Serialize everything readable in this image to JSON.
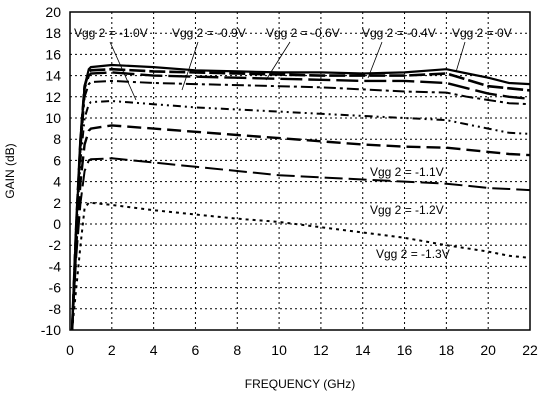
{
  "chart_data": {
    "type": "line",
    "xlabel": "FREQUENCY (GHz)",
    "ylabel": "GAIN (dB)",
    "xlim": [
      0,
      22
    ],
    "ylim": [
      -10,
      20
    ],
    "xticks": [
      0,
      2,
      4,
      6,
      8,
      10,
      12,
      14,
      16,
      18,
      20,
      22
    ],
    "yticks": [
      -10,
      -8,
      -6,
      -4,
      -2,
      0,
      2,
      4,
      6,
      8,
      10,
      12,
      14,
      16,
      18,
      20
    ],
    "grid": true,
    "series": [
      {
        "name": "Vgg 2 = 0V",
        "x": [
          0.1,
          0.3,
          0.5,
          0.7,
          0.9,
          1,
          2,
          4,
          6,
          8,
          10,
          12,
          14,
          16,
          18,
          19,
          20,
          21,
          22
        ],
        "y": [
          -10,
          0,
          8,
          13,
          14.6,
          14.8,
          15.0,
          14.8,
          14.5,
          14.4,
          14.3,
          14.3,
          14.2,
          14.3,
          14.6,
          14.2,
          13.8,
          13.3,
          13.2
        ]
      },
      {
        "name": "Vgg 2 = -0.4V",
        "x": [
          0.1,
          0.3,
          0.5,
          0.7,
          0.9,
          1,
          2,
          4,
          6,
          8,
          10,
          12,
          14,
          16,
          18,
          19,
          20,
          21,
          22
        ],
        "y": [
          -10,
          0,
          8,
          13,
          14.3,
          14.5,
          14.6,
          14.4,
          14.3,
          14.2,
          14.1,
          14.0,
          14.0,
          14.0,
          14.2,
          13.6,
          13.0,
          12.8,
          12.6
        ]
      },
      {
        "name": "Vgg 2 = -0.6V",
        "x": [
          0.1,
          0.3,
          0.5,
          0.7,
          0.9,
          1,
          2,
          4,
          6,
          8,
          10,
          12,
          14,
          16,
          18,
          19,
          20,
          21,
          22
        ],
        "y": [
          -10,
          0,
          8,
          12.8,
          14.0,
          14.2,
          14.3,
          14.0,
          13.9,
          13.8,
          13.7,
          13.6,
          13.5,
          13.5,
          13.3,
          12.8,
          12.3,
          12.0,
          11.8
        ]
      },
      {
        "name": "Vgg 2 = -0.9V",
        "x": [
          0.1,
          0.3,
          0.5,
          0.7,
          0.9,
          1,
          2,
          4,
          6,
          8,
          10,
          12,
          14,
          16,
          18,
          19,
          20,
          21,
          22
        ],
        "y": [
          -10,
          0,
          7,
          12,
          13.2,
          13.4,
          13.5,
          13.3,
          13.2,
          13.1,
          13.0,
          12.9,
          12.7,
          12.5,
          12.4,
          12.0,
          11.7,
          11.4,
          11.3
        ]
      },
      {
        "name": "Vgg 2 = -1.0V",
        "x": [
          0.1,
          0.3,
          0.5,
          0.7,
          0.9,
          1,
          2,
          4,
          6,
          8,
          10,
          12,
          14,
          16,
          18,
          19,
          20,
          21,
          22
        ],
        "y": [
          -10,
          -1,
          6,
          10,
          11.3,
          11.5,
          11.6,
          11.3,
          11.0,
          10.8,
          10.6,
          10.4,
          10.2,
          10.0,
          9.8,
          9.4,
          9.0,
          8.6,
          8.5
        ]
      },
      {
        "name": "Vgg 2 = -1.1V",
        "x": [
          0.1,
          0.3,
          0.5,
          0.7,
          0.9,
          1,
          2,
          4,
          6,
          8,
          10,
          12,
          14,
          16,
          18,
          19,
          20,
          21,
          22
        ],
        "y": [
          -10,
          -2,
          4,
          7.5,
          8.8,
          9.0,
          9.3,
          9.0,
          8.7,
          8.4,
          8.1,
          7.8,
          7.5,
          7.3,
          7.2,
          7.0,
          6.8,
          6.6,
          6.5
        ]
      },
      {
        "name": "Vgg 2 = -1.2V",
        "x": [
          0.1,
          0.3,
          0.5,
          0.7,
          0.9,
          1,
          2,
          4,
          6,
          8,
          10,
          12,
          14,
          16,
          18,
          19,
          20,
          21,
          22
        ],
        "y": [
          -10,
          -3,
          2,
          5,
          6.0,
          6.1,
          6.2,
          5.8,
          5.4,
          5.0,
          4.6,
          4.4,
          4.2,
          4.0,
          3.8,
          3.6,
          3.4,
          3.3,
          3.2
        ]
      },
      {
        "name": "Vgg 2 = -1.3V",
        "x": [
          0.1,
          0.3,
          0.5,
          0.7,
          0.9,
          1,
          2,
          4,
          6,
          8,
          10,
          12,
          14,
          16,
          18,
          19,
          20,
          21,
          22
        ],
        "y": [
          -10,
          -6,
          -2,
          1.5,
          2.0,
          2.0,
          1.8,
          1.3,
          0.9,
          0.5,
          0.2,
          -0.3,
          -0.8,
          -1.3,
          -2.0,
          -2.3,
          -2.6,
          -3.0,
          -3.2
        ]
      }
    ],
    "annotations": [
      {
        "text": "Vgg 2 = -1.0V"
      },
      {
        "text": "Vgg 2 = -0.9V"
      },
      {
        "text": "Vgg 2 = -0.6V"
      },
      {
        "text": "Vgg 2 = -0.4V"
      },
      {
        "text": "Vgg 2 = 0V"
      },
      {
        "text": "Vgg 2 = -1.1V"
      },
      {
        "text": "Vgg 2 = -1.2V"
      },
      {
        "text": "Vgg 2 = -1.3V"
      }
    ]
  }
}
